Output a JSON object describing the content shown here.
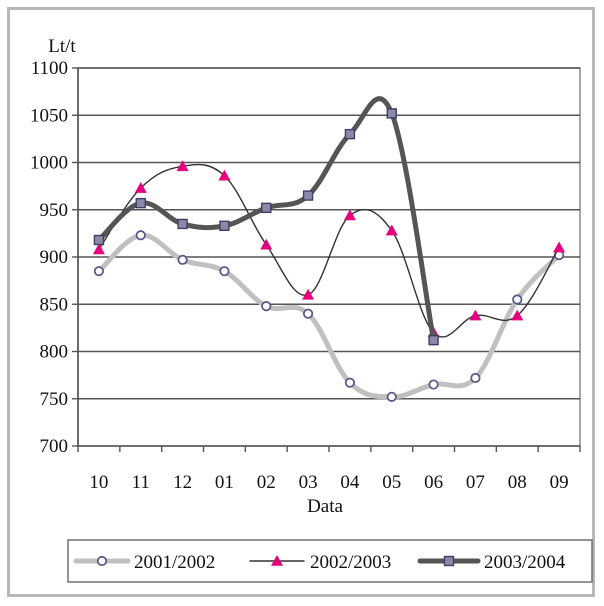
{
  "chart_data": {
    "type": "line",
    "ylabel": "Lt/t",
    "xlabel": "Data",
    "categories": [
      "10",
      "11",
      "12",
      "01",
      "02",
      "03",
      "04",
      "05",
      "06",
      "07",
      "08",
      "09"
    ],
    "ylim": [
      700,
      1100
    ],
    "yticks": [
      700,
      750,
      800,
      850,
      900,
      950,
      1000,
      1050,
      1100
    ],
    "grid": "horizontal",
    "legend": "bottom",
    "series": [
      {
        "name": "2001/2002",
        "color": "#c0c0c0",
        "marker": "circle",
        "values": [
          885,
          923,
          897,
          885,
          848,
          840,
          767,
          752,
          765,
          772,
          855,
          902
        ]
      },
      {
        "name": "2002/2003",
        "color": "#333333",
        "marker": "triangle",
        "marker_color": "#e6007e",
        "values": [
          908,
          973,
          996,
          986,
          913,
          860,
          944,
          928,
          820,
          838,
          838,
          910
        ]
      },
      {
        "name": "2003/2004",
        "color": "#555555",
        "marker": "square",
        "values": [
          918,
          957,
          935,
          933,
          952,
          965,
          1030,
          1052,
          812,
          null,
          null,
          null
        ]
      }
    ]
  }
}
